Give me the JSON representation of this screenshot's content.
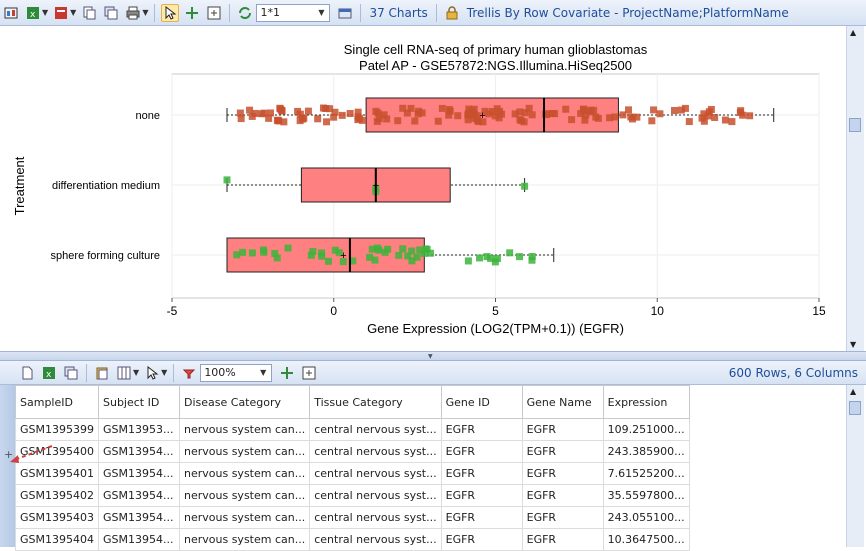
{
  "toolbar_top": {
    "layout_value": "1*1",
    "chart_count": "37 Charts",
    "trellis_label": "Trellis By Row Covariate - ProjectName;PlatformName"
  },
  "toolbar_bottom": {
    "zoom": "100%",
    "summary": "600 Rows, 6 Columns"
  },
  "chart_data": {
    "type": "box",
    "title": "Single cell RNA-seq of primary human glioblastomas",
    "subtitle": "Patel AP - GSE57872:NGS.Illumina.HiSeq2500",
    "xlabel": "Gene Expression (LOG2(TPM+0.1)) (EGFR)",
    "ylabel": "Treatment",
    "xlim": [
      -5,
      15
    ],
    "xticks": [
      "-5",
      "0",
      "5",
      "10",
      "15"
    ],
    "categories": [
      "none",
      "differentiation medium",
      "sphere forming culture"
    ],
    "boxes": [
      {
        "category": "none",
        "min": -3.3,
        "q1": 1.0,
        "median": 6.5,
        "q3": 8.8,
        "max": 13.6,
        "mean": 4.6,
        "color": "#ff8080",
        "point_color": "#c8502e"
      },
      {
        "category": "differentiation medium",
        "min": -3.3,
        "q1": -1.0,
        "median": 1.3,
        "q3": 3.6,
        "max": 5.9,
        "mean": 1.3,
        "color": "#ff8080",
        "point_color": "#3cb43c"
      },
      {
        "category": "sphere forming culture",
        "min": -3.3,
        "q1": -3.3,
        "median": 0.5,
        "q3": 2.8,
        "max": 6.8,
        "mean": 0.3,
        "color": "#ff8080",
        "point_color": "#3cb43c"
      }
    ],
    "grid": true,
    "legend": "none"
  },
  "table": {
    "columns": [
      "SampleID",
      "Subject ID",
      "Disease Category",
      "Tissue Category",
      "Gene ID",
      "Gene Name",
      "Expression"
    ],
    "rows": [
      [
        "GSM1395399",
        "GSM13953...",
        "nervous system can...",
        "central nervous syst...",
        "EGFR",
        "EGFR",
        "109.251000..."
      ],
      [
        "GSM1395400",
        "GSM13954...",
        "nervous system can...",
        "central nervous syst...",
        "EGFR",
        "EGFR",
        "243.385900..."
      ],
      [
        "GSM1395401",
        "GSM13954...",
        "nervous system can...",
        "central nervous syst...",
        "EGFR",
        "EGFR",
        "7.61525200..."
      ],
      [
        "GSM1395402",
        "GSM13954...",
        "nervous system can...",
        "central nervous syst...",
        "EGFR",
        "EGFR",
        "35.5597800..."
      ],
      [
        "GSM1395403",
        "GSM13954...",
        "nervous system can...",
        "central nervous syst...",
        "EGFR",
        "EGFR",
        "243.055100..."
      ],
      [
        "GSM1395404",
        "GSM13954...",
        "nervous system can...",
        "central nervous syst...",
        "EGFR",
        "EGFR",
        "10.3647500..."
      ]
    ]
  }
}
